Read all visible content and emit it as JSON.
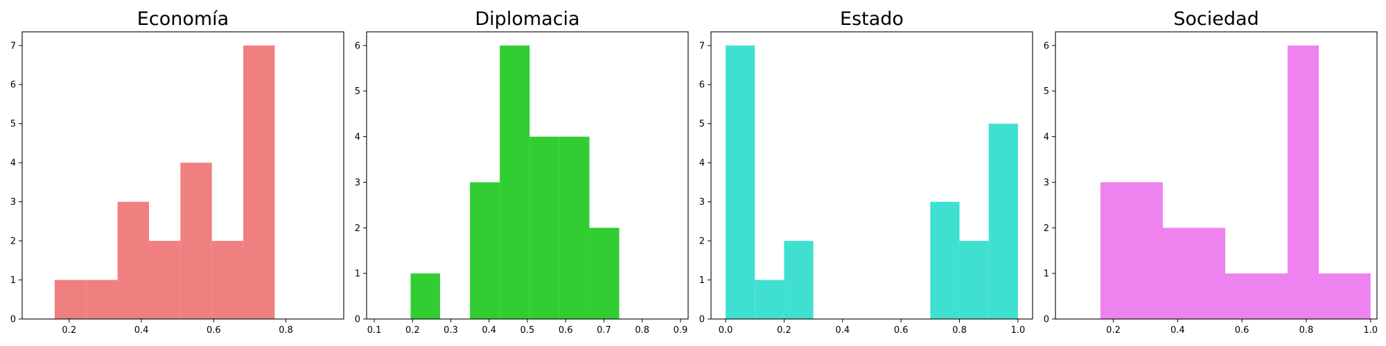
{
  "chart_data": [
    {
      "type": "bar",
      "title": "Economía",
      "color": "#f08080",
      "xlim": [
        0.07,
        0.96
      ],
      "ylim": [
        0,
        7.35
      ],
      "xticks": [
        0.2,
        0.4,
        0.6,
        0.8
      ],
      "yticks": [
        0,
        1,
        2,
        3,
        4,
        5,
        6,
        7
      ],
      "bins": [
        {
          "x0": 0.16,
          "x1": 0.247,
          "value": 1
        },
        {
          "x0": 0.247,
          "x1": 0.334,
          "value": 1
        },
        {
          "x0": 0.334,
          "x1": 0.421,
          "value": 3
        },
        {
          "x0": 0.421,
          "x1": 0.508,
          "value": 2
        },
        {
          "x0": 0.508,
          "x1": 0.595,
          "value": 4
        },
        {
          "x0": 0.595,
          "x1": 0.682,
          "value": 2
        },
        {
          "x0": 0.682,
          "x1": 0.769,
          "value": 7
        }
      ]
    },
    {
      "type": "bar",
      "title": "Diplomacia",
      "color": "#32cd32",
      "xlim": [
        0.08,
        0.92
      ],
      "ylim": [
        0,
        6.3
      ],
      "xticks": [
        0.1,
        0.2,
        0.3,
        0.4,
        0.5,
        0.6,
        0.7,
        0.8,
        0.9
      ],
      "yticks": [
        0,
        1,
        2,
        3,
        4,
        5,
        6
      ],
      "bins": [
        {
          "x0": 0.195,
          "x1": 0.272,
          "value": 1
        },
        {
          "x0": 0.272,
          "x1": 0.35,
          "value": 0
        },
        {
          "x0": 0.35,
          "x1": 0.428,
          "value": 3
        },
        {
          "x0": 0.428,
          "x1": 0.506,
          "value": 6
        },
        {
          "x0": 0.506,
          "x1": 0.584,
          "value": 4
        },
        {
          "x0": 0.584,
          "x1": 0.662,
          "value": 4
        },
        {
          "x0": 0.662,
          "x1": 0.74,
          "value": 2
        }
      ]
    },
    {
      "type": "bar",
      "title": "Estado",
      "color": "#40e0d0",
      "xlim": [
        -0.05,
        1.05
      ],
      "ylim": [
        0,
        7.35
      ],
      "xticks": [
        0.0,
        0.2,
        0.4,
        0.6,
        0.8,
        1.0
      ],
      "yticks": [
        0,
        1,
        2,
        3,
        4,
        5,
        6,
        7
      ],
      "bins": [
        {
          "x0": 0.0,
          "x1": 0.1,
          "value": 7
        },
        {
          "x0": 0.1,
          "x1": 0.2,
          "value": 1
        },
        {
          "x0": 0.2,
          "x1": 0.3,
          "value": 2
        },
        {
          "x0": 0.3,
          "x1": 0.4,
          "value": 0
        },
        {
          "x0": 0.4,
          "x1": 0.5,
          "value": 0
        },
        {
          "x0": 0.5,
          "x1": 0.6,
          "value": 0
        },
        {
          "x0": 0.6,
          "x1": 0.7,
          "value": 0
        },
        {
          "x0": 0.7,
          "x1": 0.8,
          "value": 3
        },
        {
          "x0": 0.8,
          "x1": 0.9,
          "value": 2
        },
        {
          "x0": 0.9,
          "x1": 1.0,
          "value": 5
        }
      ]
    },
    {
      "type": "bar",
      "title": "Sociedad",
      "color": "#ee82ee",
      "xlim": [
        0.02,
        1.02
      ],
      "ylim": [
        0,
        6.3
      ],
      "xticks": [
        0.2,
        0.4,
        0.6,
        0.8,
        1.0
      ],
      "yticks": [
        0,
        1,
        2,
        3,
        4,
        5,
        6
      ],
      "bins": [
        {
          "x0": 0.16,
          "x1": 0.257,
          "value": 3
        },
        {
          "x0": 0.257,
          "x1": 0.354,
          "value": 3
        },
        {
          "x0": 0.354,
          "x1": 0.451,
          "value": 2
        },
        {
          "x0": 0.451,
          "x1": 0.548,
          "value": 2
        },
        {
          "x0": 0.548,
          "x1": 0.645,
          "value": 1
        },
        {
          "x0": 0.645,
          "x1": 0.742,
          "value": 1
        },
        {
          "x0": 0.742,
          "x1": 0.839,
          "value": 6
        },
        {
          "x0": 0.839,
          "x1": 0.936,
          "value": 1
        },
        {
          "x0": 0.936,
          "x1": 1.0,
          "value": 1
        }
      ]
    }
  ]
}
